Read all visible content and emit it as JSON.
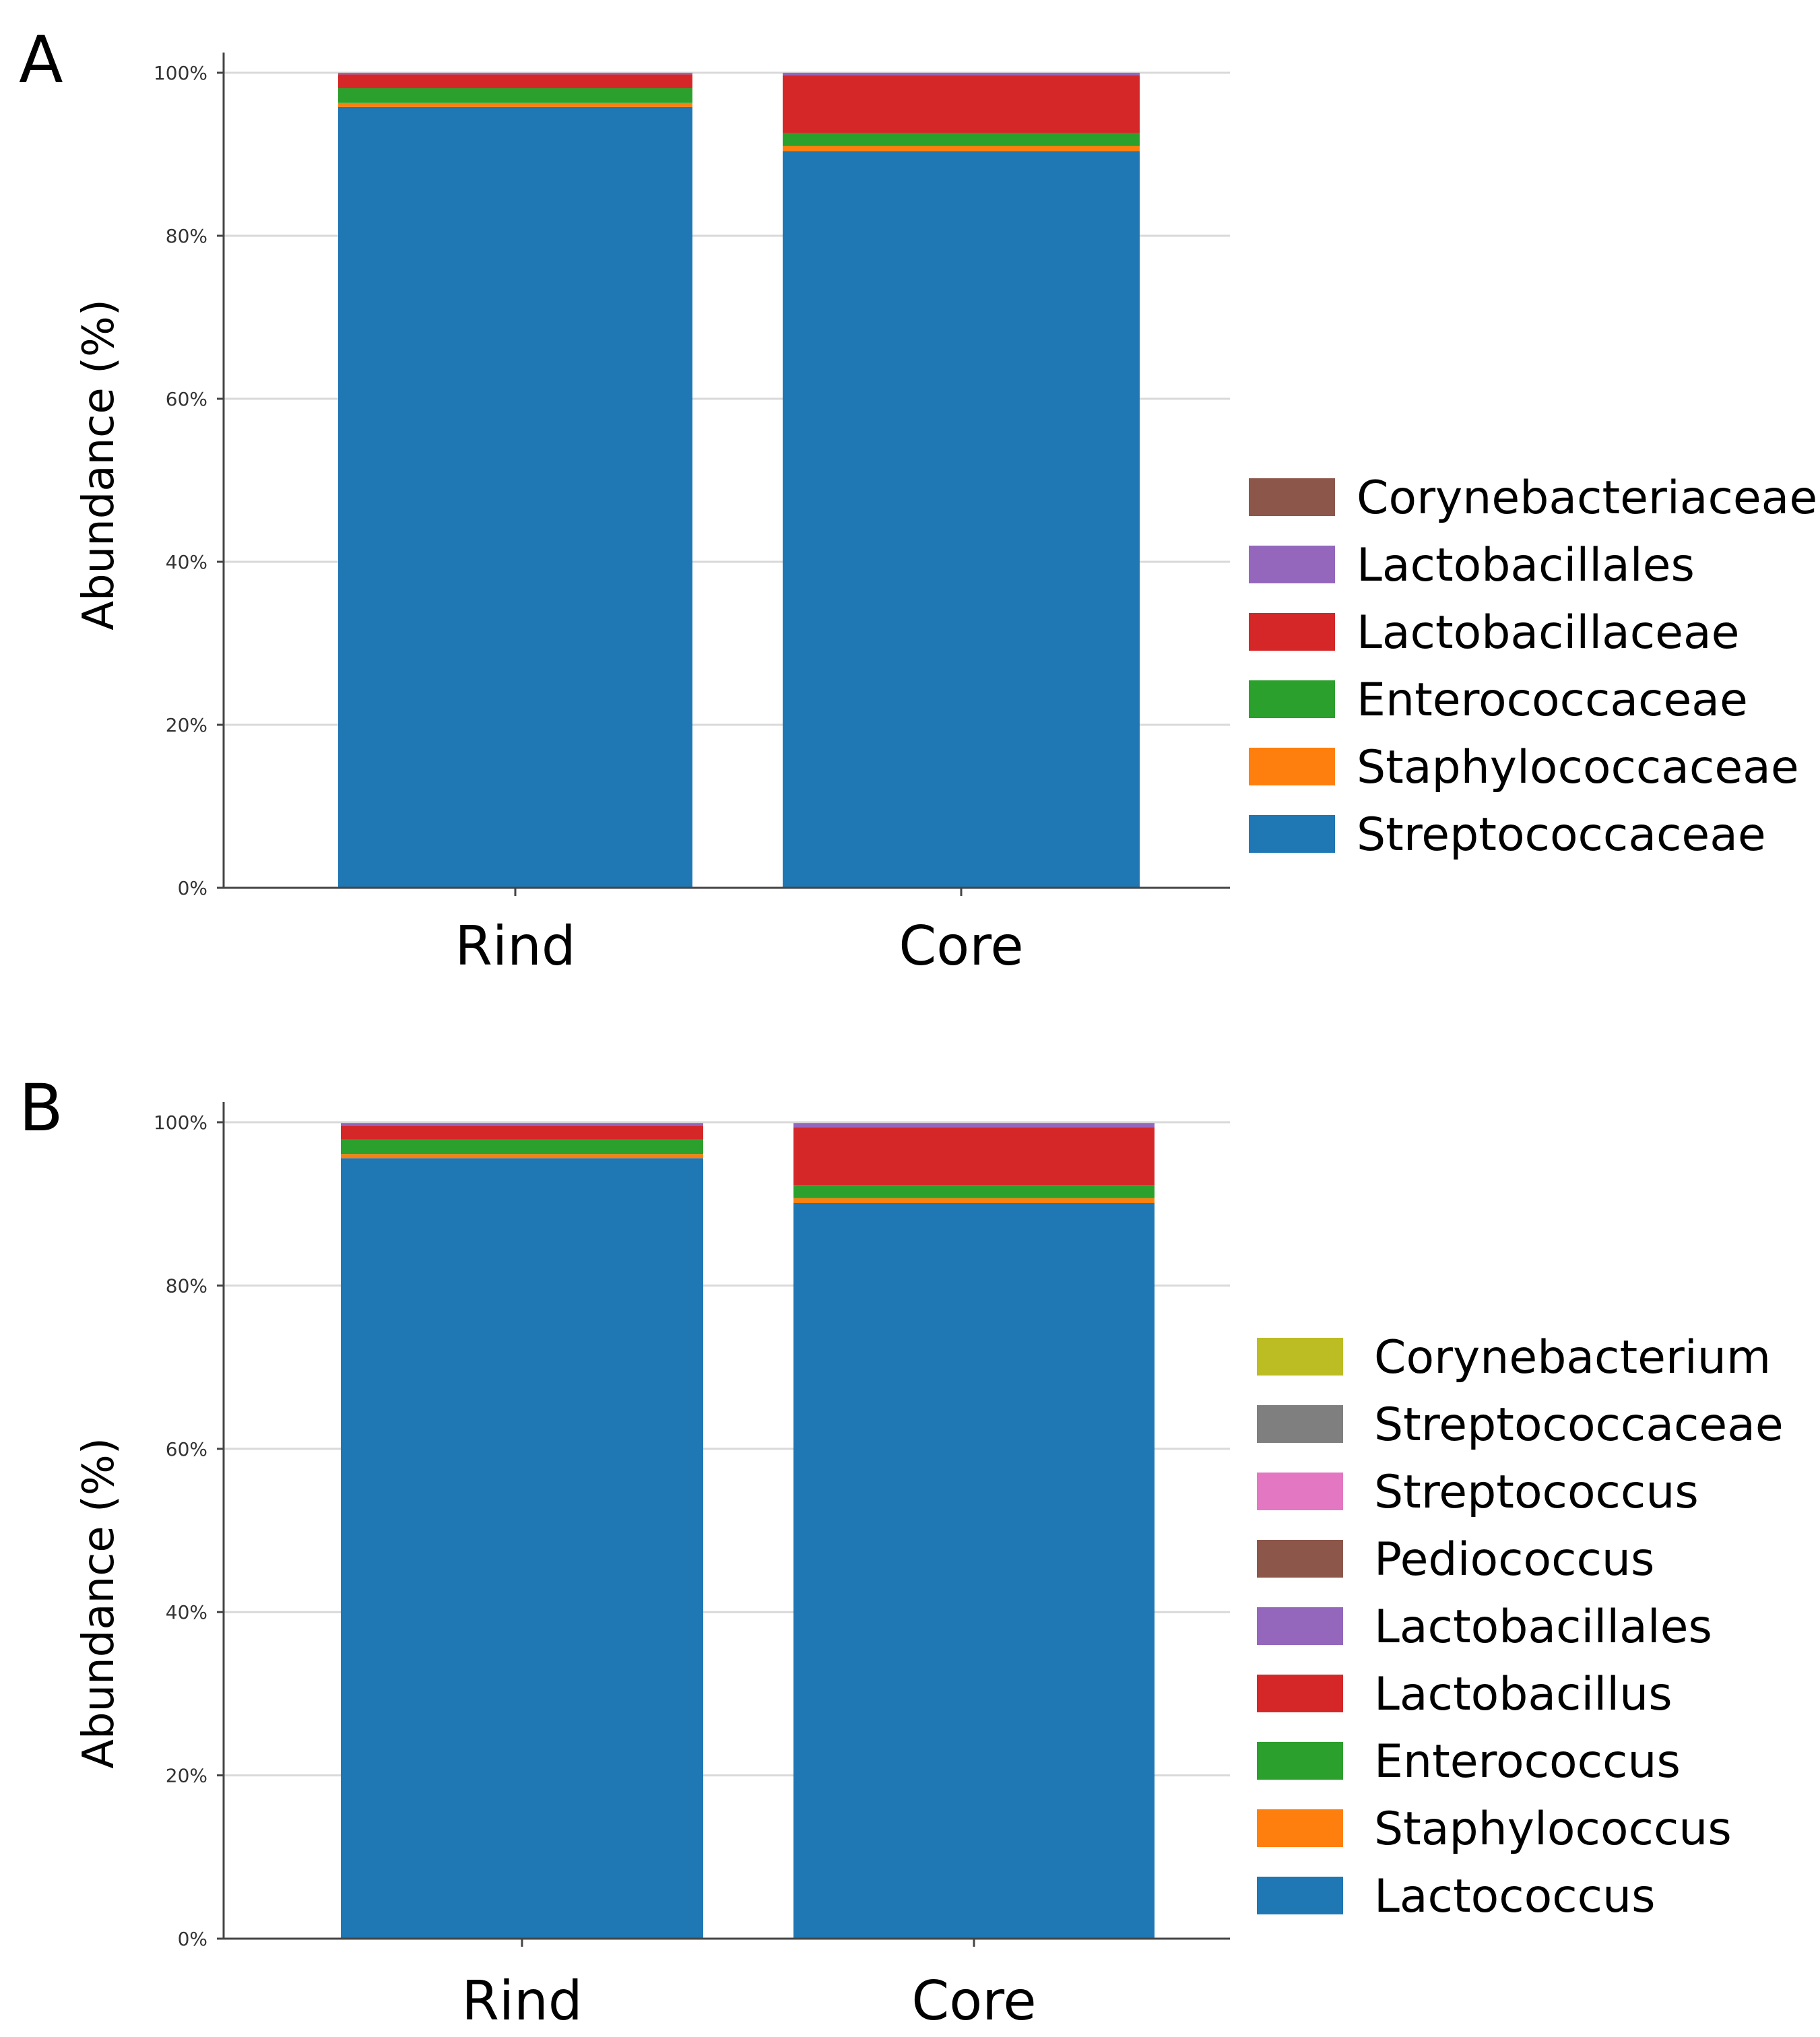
{
  "chart_data": [
    {
      "panel_label": "A",
      "type": "bar",
      "stacked": true,
      "categories": [
        "Rind",
        "Core"
      ],
      "ylabel": "Abundance (%)",
      "ylim": [
        0,
        100
      ],
      "yticks": [
        "0%",
        "20%",
        "40%",
        "60%",
        "80%",
        "100%"
      ],
      "grid": true,
      "legend_position": "right",
      "series": [
        {
          "name": "Streptococcaceae",
          "color": "#1f77b4",
          "values": [
            95.8,
            90.4
          ]
        },
        {
          "name": "Staphylococcaceae",
          "color": "#ff7f0e",
          "values": [
            0.5,
            0.6
          ]
        },
        {
          "name": "Enterococcaceae",
          "color": "#2ca02c",
          "values": [
            1.8,
            1.6
          ]
        },
        {
          "name": "Lactobacillaceae",
          "color": "#d62728",
          "values": [
            1.7,
            7.1
          ]
        },
        {
          "name": "Lactobacillales",
          "color": "#9467bd",
          "values": [
            0.2,
            0.3
          ]
        },
        {
          "name": "Corynebacteriaceae",
          "color": "#8c564b",
          "values": [
            0.0,
            0.0
          ]
        }
      ]
    },
    {
      "panel_label": "B",
      "type": "bar",
      "stacked": true,
      "categories": [
        "Rind",
        "Core"
      ],
      "ylabel": "Abundance (%)",
      "ylim": [
        0,
        100
      ],
      "yticks": [
        "0%",
        "20%",
        "40%",
        "60%",
        "80%",
        "100%"
      ],
      "grid": true,
      "legend_position": "right",
      "series": [
        {
          "name": "Lactococcus",
          "color": "#1f77b4",
          "values": [
            95.6,
            90.1
          ]
        },
        {
          "name": "Staphylococcus",
          "color": "#ff7f0e",
          "values": [
            0.5,
            0.6
          ]
        },
        {
          "name": "Enterococcus",
          "color": "#2ca02c",
          "values": [
            1.8,
            1.6
          ]
        },
        {
          "name": "Lactobacillus",
          "color": "#d62728",
          "values": [
            1.7,
            7.1
          ]
        },
        {
          "name": "Lactobacillales",
          "color": "#9467bd",
          "values": [
            0.3,
            0.5
          ]
        },
        {
          "name": "Pediococcus",
          "color": "#8c564b",
          "values": [
            0.0,
            0.0
          ]
        },
        {
          "name": "Streptococcus",
          "color": "#e377c2",
          "values": [
            0.0,
            0.0
          ]
        },
        {
          "name": "Streptococcaceae",
          "color": "#7f7f7f",
          "values": [
            0.0,
            0.0
          ]
        },
        {
          "name": "Corynebacterium",
          "color": "#bcbd22",
          "values": [
            0.0,
            0.0
          ]
        }
      ]
    }
  ]
}
